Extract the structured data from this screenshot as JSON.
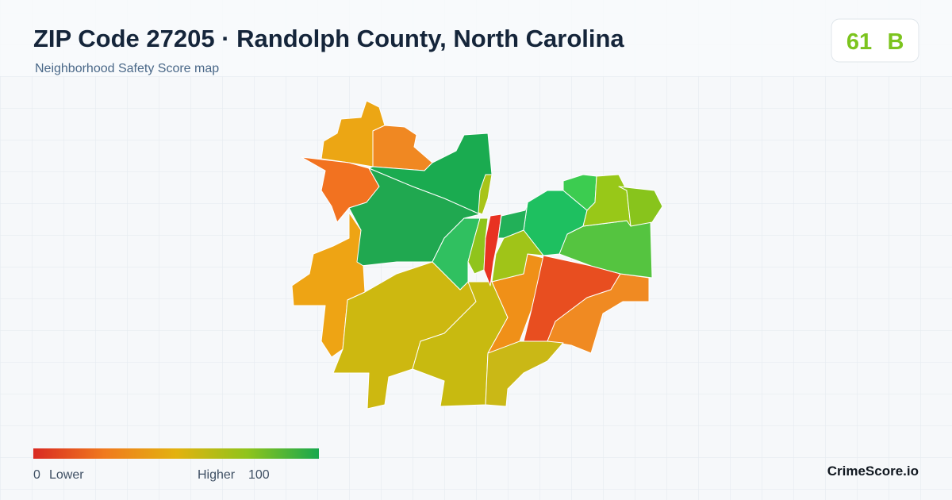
{
  "header": {
    "title": "ZIP Code 27205 · Randolph County, North Carolina",
    "subtitle": "Neighborhood Safety Score map"
  },
  "score": {
    "value": 61,
    "grade": "B"
  },
  "legend": {
    "min": 0,
    "min_label": "Lower",
    "max_label": "Higher",
    "max": 100
  },
  "brand": "CrimeScore.io"
}
